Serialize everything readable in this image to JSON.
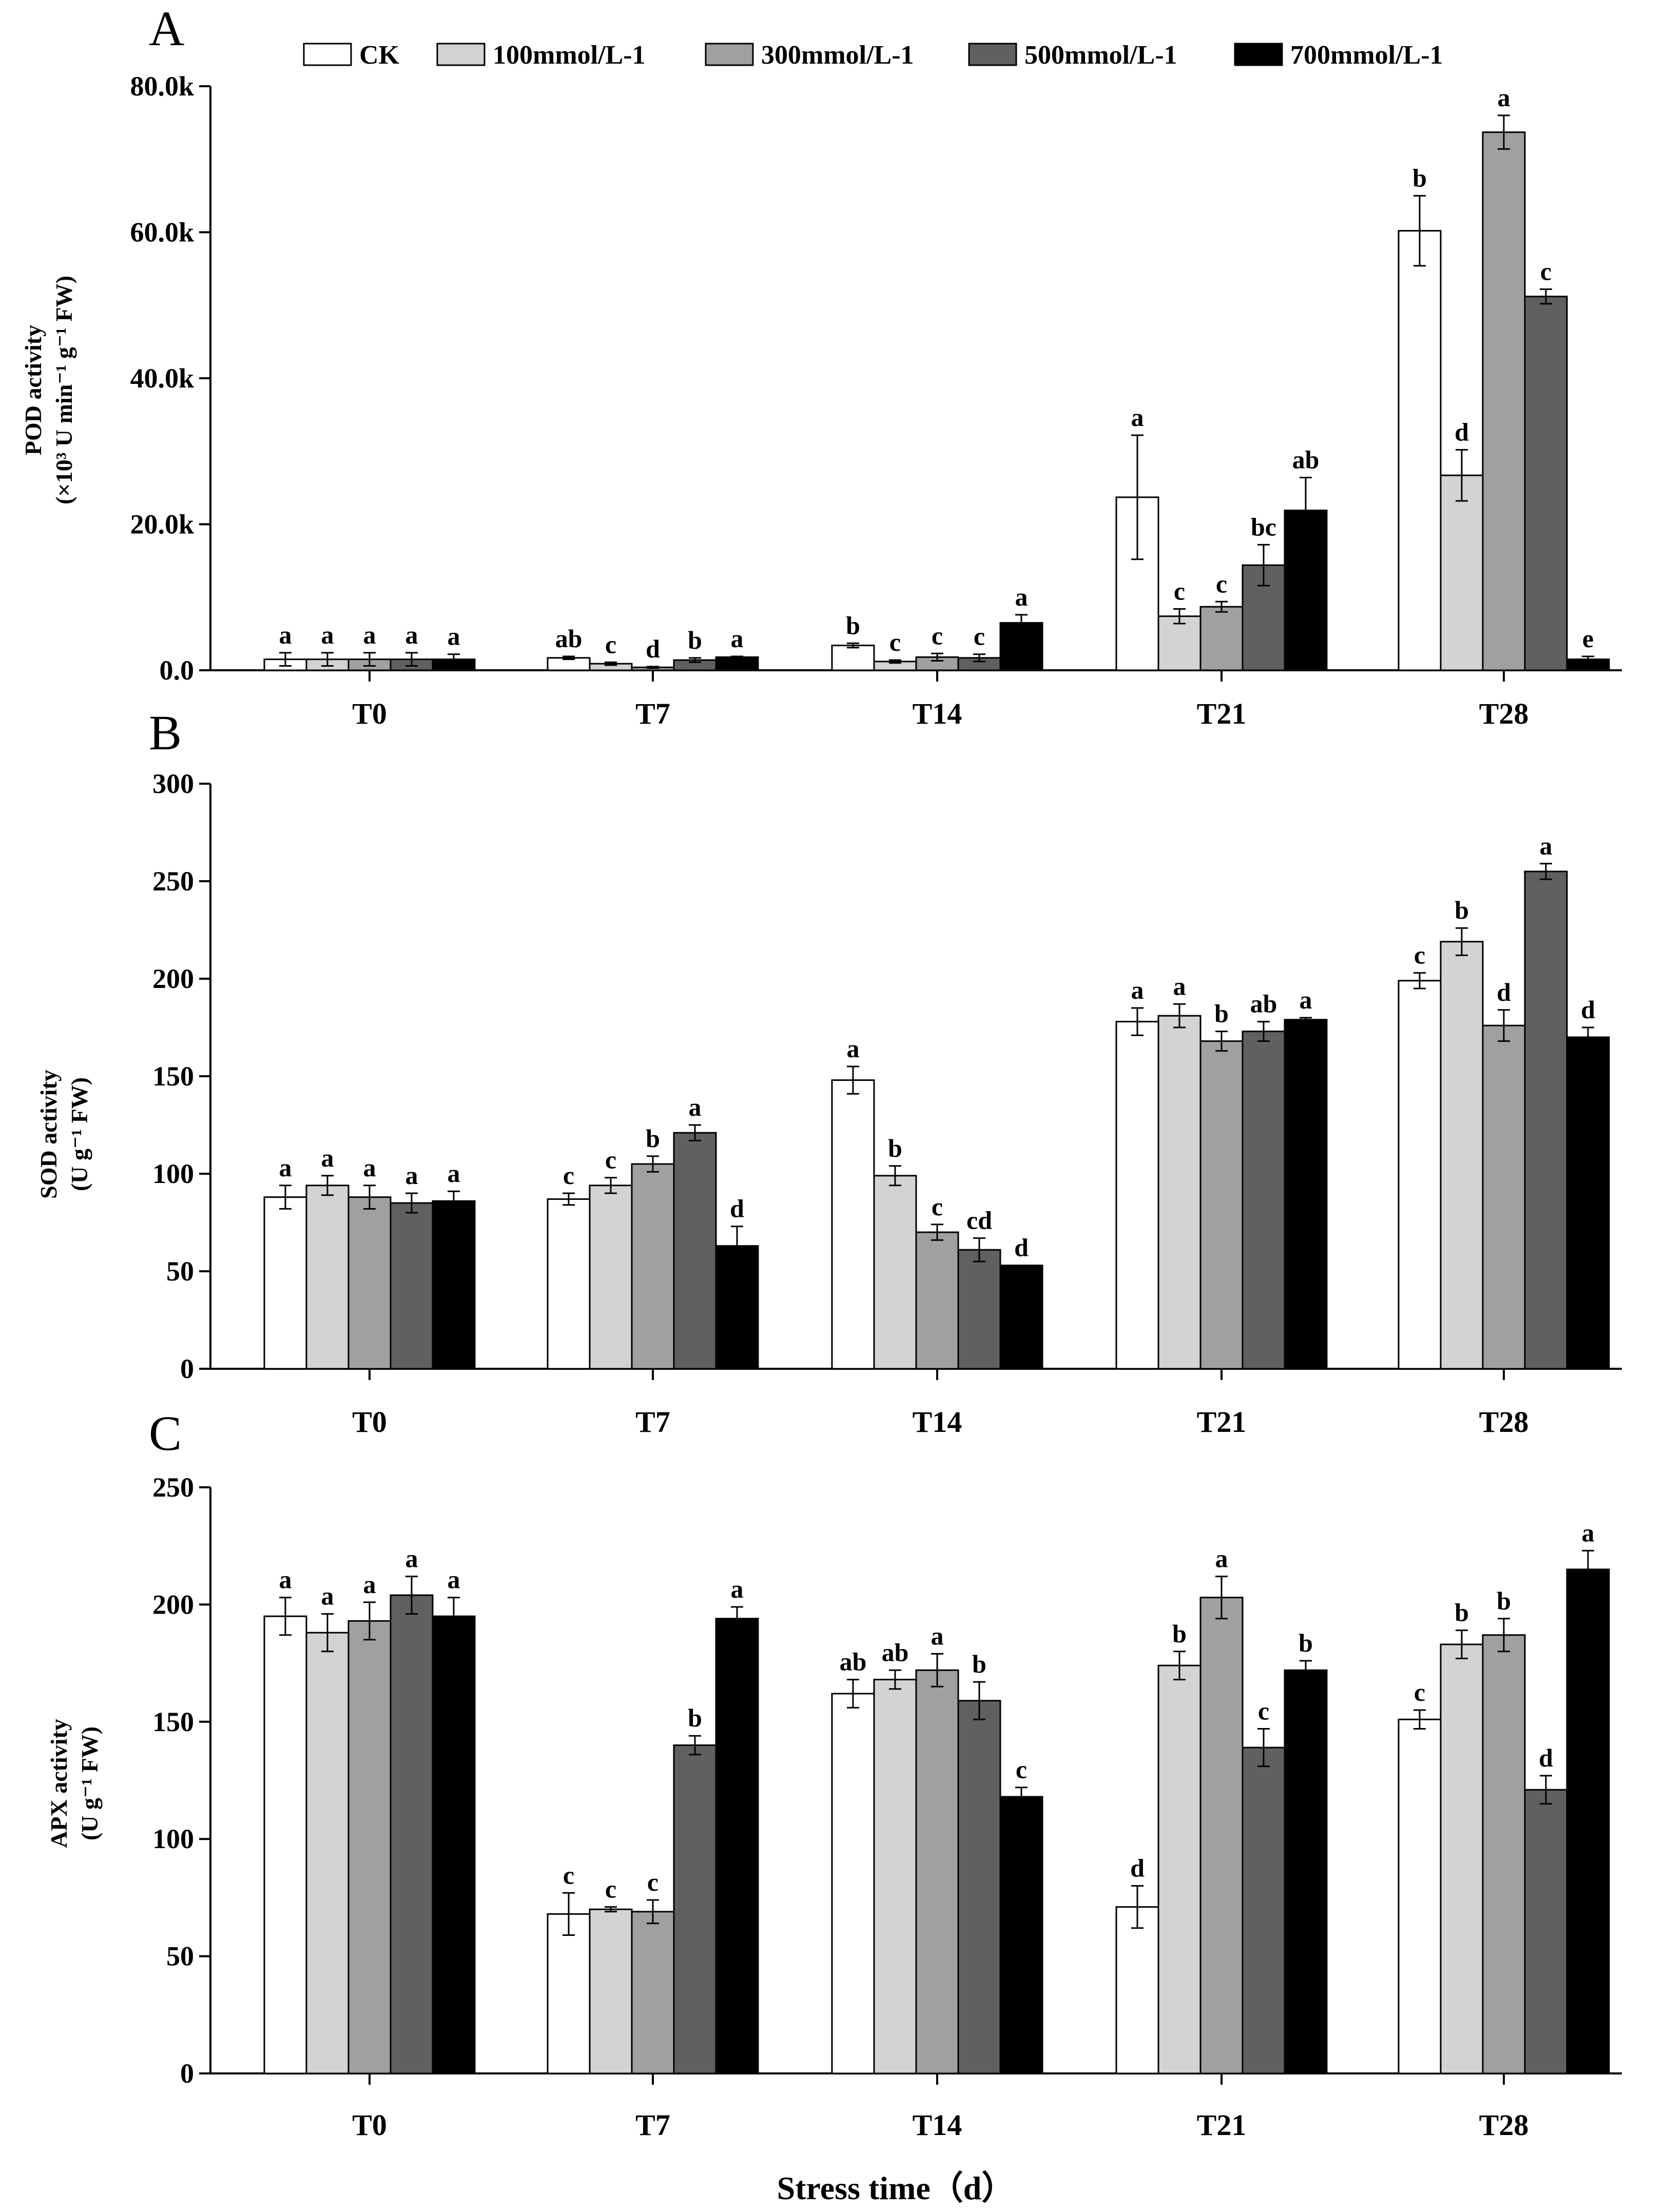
{
  "colors": {
    "series": [
      "#ffffff",
      "#d3d3d3",
      "#a0a0a0",
      "#606060",
      "#000000"
    ],
    "axis": "#000000"
  },
  "legend": [
    "CK",
    "100mmol/L-1",
    "300mmol/L-1",
    "500mmol/L-1",
    "700mmol/L-1"
  ],
  "x_title": "Stress time（d）",
  "chart_data": [
    {
      "panel": "A",
      "type": "bar",
      "title": "",
      "ylabel_line1": "POD activity",
      "ylabel_line2": "(×10³ U min⁻¹ g⁻¹ FW)",
      "ylim": [
        0,
        80000
      ],
      "yticks": [
        0,
        20000,
        40000,
        60000,
        80000
      ],
      "ytick_labels": [
        "0.0",
        "20.0k",
        "40.0k",
        "60.0k",
        "80.0k"
      ],
      "categories": [
        "T0",
        "T7",
        "T14",
        "T21",
        "T28"
      ],
      "series": [
        {
          "name": "CK",
          "values": [
            1500,
            1700,
            3400,
            23700,
            60200
          ],
          "errors": [
            900,
            200,
            300,
            8500,
            4800
          ],
          "letters": [
            "a",
            "ab",
            "b",
            "a",
            "b"
          ]
        },
        {
          "name": "100mmol/L-1",
          "values": [
            1500,
            900,
            1200,
            7400,
            26700
          ],
          "errors": [
            900,
            200,
            200,
            1000,
            3500
          ],
          "letters": [
            "a",
            "c",
            "c",
            "c",
            "d"
          ]
        },
        {
          "name": "300mmol/L-1",
          "values": [
            1500,
            400,
            1800,
            8700,
            73700
          ],
          "errors": [
            900,
            100,
            500,
            700,
            2300
          ],
          "letters": [
            "a",
            "d",
            "c",
            "c",
            "a"
          ]
        },
        {
          "name": "500mmol/L-1",
          "values": [
            1500,
            1400,
            1700,
            14400,
            51200
          ],
          "errors": [
            900,
            300,
            500,
            2800,
            1000
          ],
          "letters": [
            "a",
            "b",
            "c",
            "bc",
            "c"
          ]
        },
        {
          "name": "700mmol/L-1",
          "values": [
            1500,
            1800,
            6500,
            21900,
            1500
          ],
          "errors": [
            700,
            100,
            1100,
            4500,
            400
          ],
          "letters": [
            "a",
            "a",
            "a",
            "ab",
            "e"
          ]
        }
      ]
    },
    {
      "panel": "B",
      "type": "bar",
      "title": "",
      "ylabel_line1": "SOD activity",
      "ylabel_line2": "(U g⁻¹ FW)",
      "ylim": [
        0,
        300
      ],
      "yticks": [
        0,
        50,
        100,
        150,
        200,
        250,
        300
      ],
      "ytick_labels": [
        "0",
        "50",
        "100",
        "150",
        "200",
        "250",
        "300"
      ],
      "categories": [
        "T0",
        "T7",
        "T14",
        "T21",
        "T28"
      ],
      "series": [
        {
          "name": "CK",
          "values": [
            88,
            87,
            148,
            178,
            199
          ],
          "errors": [
            6,
            3,
            7,
            7,
            4
          ],
          "letters": [
            "a",
            "c",
            "a",
            "a",
            "c"
          ]
        },
        {
          "name": "100mmol/L-1",
          "values": [
            94,
            94,
            99,
            181,
            219
          ],
          "errors": [
            5,
            4,
            5,
            6,
            7
          ],
          "letters": [
            "a",
            "c",
            "b",
            "a",
            "b"
          ]
        },
        {
          "name": "300mmol/L-1",
          "values": [
            88,
            105,
            70,
            168,
            176
          ],
          "errors": [
            6,
            4,
            4,
            5,
            8
          ],
          "letters": [
            "a",
            "b",
            "c",
            "b",
            "d"
          ]
        },
        {
          "name": "500mmol/L-1",
          "values": [
            85,
            121,
            61,
            173,
            255
          ],
          "errors": [
            5,
            4,
            6,
            5,
            4
          ],
          "letters": [
            "a",
            "a",
            "cd",
            "ab",
            "a"
          ]
        },
        {
          "name": "700mmol/L-1",
          "values": [
            86,
            63,
            53,
            179,
            170
          ],
          "errors": [
            5,
            10,
            0,
            1,
            5
          ],
          "letters": [
            "a",
            "d",
            "d",
            "a",
            "d"
          ]
        }
      ]
    },
    {
      "panel": "C",
      "type": "bar",
      "title": "",
      "ylabel_line1": "APX activity",
      "ylabel_line2": "(U g⁻¹ FW)",
      "ylim": [
        0,
        250
      ],
      "yticks": [
        0,
        50,
        100,
        150,
        200,
        250
      ],
      "ytick_labels": [
        "0",
        "50",
        "100",
        "150",
        "200",
        "250"
      ],
      "categories": [
        "T0",
        "T7",
        "T14",
        "T21",
        "T28"
      ],
      "series": [
        {
          "name": "CK",
          "values": [
            195,
            68,
            162,
            71,
            151
          ],
          "errors": [
            8,
            9,
            6,
            9,
            4
          ],
          "letters": [
            "a",
            "c",
            "ab",
            "d",
            "c"
          ]
        },
        {
          "name": "100mmol/L-1",
          "values": [
            188,
            70,
            168,
            174,
            183
          ],
          "errors": [
            8,
            1,
            4,
            6,
            6
          ],
          "letters": [
            "a",
            "c",
            "ab",
            "b",
            "b"
          ]
        },
        {
          "name": "300mmol/L-1",
          "values": [
            193,
            69,
            172,
            203,
            187
          ],
          "errors": [
            8,
            5,
            7,
            9,
            7
          ],
          "letters": [
            "a",
            "c",
            "a",
            "a",
            "b"
          ]
        },
        {
          "name": "500mmol/L-1",
          "values": [
            204,
            140,
            159,
            139,
            121
          ],
          "errors": [
            8,
            4,
            8,
            8,
            6
          ],
          "letters": [
            "a",
            "b",
            "b",
            "c",
            "d"
          ]
        },
        {
          "name": "700mmol/L-1",
          "values": [
            195,
            194,
            118,
            172,
            215
          ],
          "errors": [
            8,
            5,
            4,
            4,
            8
          ],
          "letters": [
            "a",
            "a",
            "c",
            "b",
            "a"
          ]
        }
      ]
    }
  ]
}
